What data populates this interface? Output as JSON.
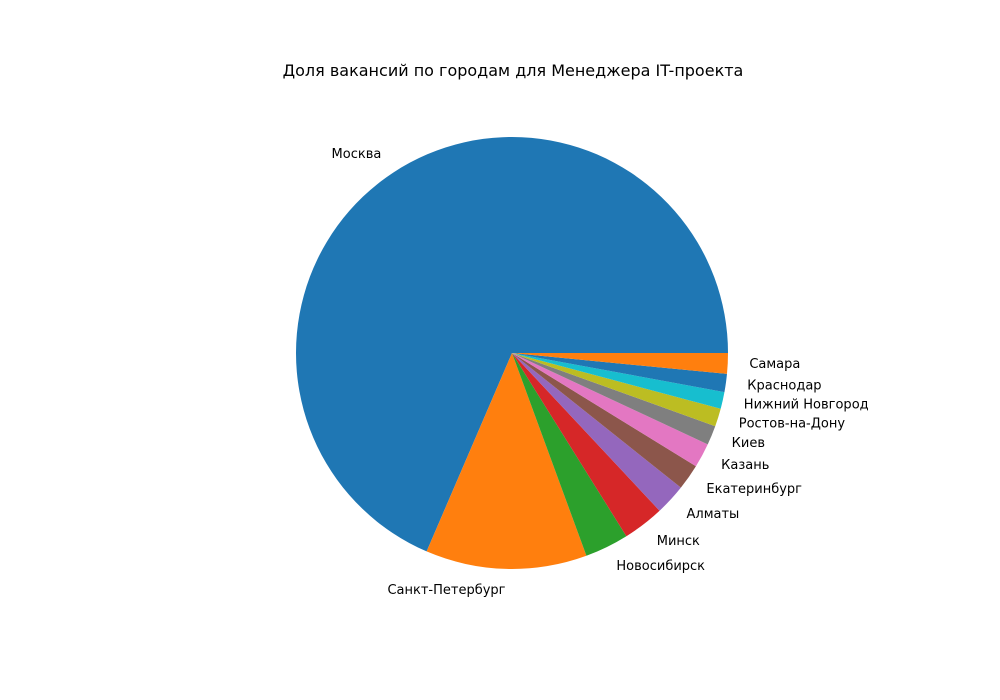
{
  "chart_data": {
    "type": "pie",
    "title": "Доля вакансий по городам для Менеджера IT-проекта",
    "start_angle_deg": 0,
    "direction": "counterclockwise",
    "legend": "none",
    "categories": [
      "Москва",
      "Санкт-Петербург",
      "Новосибирск",
      "Минск",
      "Алматы",
      "Екатеринбург",
      "Казань",
      "Киев",
      "Ростов-на-Дону",
      "Нижний Новгород",
      "Краснодар",
      "Самара"
    ],
    "values": [
      71.0,
      12.5,
      3.4,
      3.2,
      2.4,
      2.0,
      1.9,
      1.5,
      1.4,
      1.3,
      1.4,
      1.6
    ],
    "colors": [
      "#1f77b4",
      "#ff7f0e",
      "#2ca02c",
      "#d62728",
      "#9467bd",
      "#8c564b",
      "#e377c2",
      "#7f7f7f",
      "#bcbd22",
      "#17becf",
      "#1f77b4",
      "#ff7f0e"
    ]
  }
}
